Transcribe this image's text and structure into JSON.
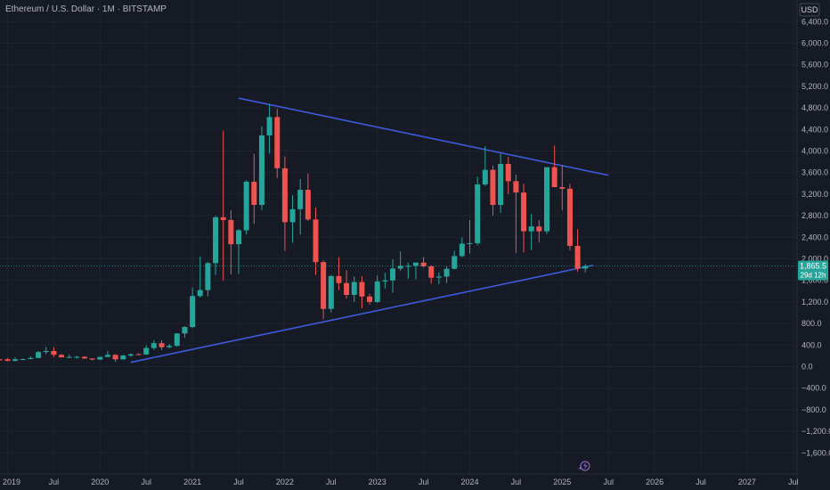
{
  "header": {
    "symbol_line": "Ethereum / U.S. Dollar · 1M · BITSTAMP"
  },
  "price_scale": {
    "unit": "USD"
  },
  "last_price": {
    "value": "1,865.5",
    "countdown": "29d 12h",
    "numeric": 1865.5
  },
  "colors": {
    "background": "#161a25",
    "up": "#26a69a",
    "down": "#ef5350",
    "trendline": "#3d5bdc",
    "text": "#b2b5be",
    "grid": "#1f2330",
    "price_tag": "#26a69a"
  },
  "chart_data": {
    "type": "candlestick",
    "x_ticks": [
      {
        "label": "2019",
        "t": 0
      },
      {
        "label": "Jul",
        "t": 6
      },
      {
        "label": "2020",
        "t": 12
      },
      {
        "label": "Jul",
        "t": 18
      },
      {
        "label": "2021",
        "t": 24
      },
      {
        "label": "Jul",
        "t": 30
      },
      {
        "label": "2022",
        "t": 36
      },
      {
        "label": "Jul",
        "t": 42
      },
      {
        "label": "2023",
        "t": 48
      },
      {
        "label": "Jul",
        "t": 54
      },
      {
        "label": "2024",
        "t": 60
      },
      {
        "label": "Jul",
        "t": 66
      },
      {
        "label": "2025",
        "t": 72
      },
      {
        "label": "Jul",
        "t": 78
      },
      {
        "label": "2026",
        "t": 84
      },
      {
        "label": "Jul",
        "t": 90
      },
      {
        "label": "2027",
        "t": 96
      },
      {
        "label": "Jul",
        "t": 102
      }
    ],
    "y_ticks": [
      "6,400.0",
      "6,000.0",
      "5,600.0",
      "5,200.0",
      "4,800.0",
      "4,400.0",
      "4,000.0",
      "3,600.0",
      "3,200.0",
      "2,800.0",
      "2,400.0",
      "2,000.0",
      "1,600.0",
      "1,200.0",
      "800.0",
      "400.0",
      "0.0",
      "−400.0",
      "−800.0",
      "−1,200.0",
      "−1,600.0"
    ],
    "y_tick_values": [
      6400,
      6000,
      5600,
      5200,
      4800,
      4400,
      4000,
      3600,
      3200,
      2800,
      2400,
      2000,
      1600,
      1200,
      800,
      400,
      0,
      -400,
      -800,
      -1200,
      -1600
    ],
    "ylim": [
      -2000,
      6700
    ],
    "x_range": [
      -2,
      104
    ],
    "candles": [
      {
        "t": -2,
        "o": 115,
        "h": 145,
        "l": 100,
        "c": 135
      },
      {
        "t": -1,
        "o": 135,
        "h": 150,
        "l": 110,
        "c": 125
      },
      {
        "t": 0,
        "o": 135,
        "h": 160,
        "l": 100,
        "c": 105
      },
      {
        "t": 1,
        "o": 105,
        "h": 170,
        "l": 100,
        "c": 136
      },
      {
        "t": 2,
        "o": 136,
        "h": 150,
        "l": 120,
        "c": 140
      },
      {
        "t": 3,
        "o": 140,
        "h": 185,
        "l": 140,
        "c": 160
      },
      {
        "t": 4,
        "o": 160,
        "h": 290,
        "l": 155,
        "c": 270
      },
      {
        "t": 5,
        "o": 270,
        "h": 365,
        "l": 230,
        "c": 290
      },
      {
        "t": 6,
        "o": 290,
        "h": 360,
        "l": 180,
        "c": 218
      },
      {
        "t": 7,
        "o": 218,
        "h": 235,
        "l": 170,
        "c": 172
      },
      {
        "t": 8,
        "o": 172,
        "h": 225,
        "l": 160,
        "c": 180
      },
      {
        "t": 9,
        "o": 180,
        "h": 200,
        "l": 150,
        "c": 182
      },
      {
        "t": 10,
        "o": 182,
        "h": 195,
        "l": 145,
        "c": 151
      },
      {
        "t": 11,
        "o": 151,
        "h": 155,
        "l": 115,
        "c": 130
      },
      {
        "t": 12,
        "o": 130,
        "h": 185,
        "l": 125,
        "c": 180
      },
      {
        "t": 13,
        "o": 180,
        "h": 290,
        "l": 175,
        "c": 218
      },
      {
        "t": 14,
        "o": 218,
        "h": 230,
        "l": 90,
        "c": 135
      },
      {
        "t": 15,
        "o": 135,
        "h": 220,
        "l": 130,
        "c": 205
      },
      {
        "t": 16,
        "o": 205,
        "h": 240,
        "l": 180,
        "c": 230
      },
      {
        "t": 17,
        "o": 230,
        "h": 250,
        "l": 220,
        "c": 225
      },
      {
        "t": 18,
        "o": 225,
        "h": 395,
        "l": 220,
        "c": 345
      },
      {
        "t": 19,
        "o": 345,
        "h": 490,
        "l": 310,
        "c": 435
      },
      {
        "t": 20,
        "o": 435,
        "h": 490,
        "l": 310,
        "c": 360
      },
      {
        "t": 21,
        "o": 360,
        "h": 420,
        "l": 340,
        "c": 385
      },
      {
        "t": 22,
        "o": 385,
        "h": 620,
        "l": 370,
        "c": 615
      },
      {
        "t": 23,
        "o": 615,
        "h": 750,
        "l": 535,
        "c": 735
      },
      {
        "t": 24,
        "o": 735,
        "h": 1470,
        "l": 715,
        "c": 1310
      },
      {
        "t": 25,
        "o": 1310,
        "h": 2040,
        "l": 1280,
        "c": 1420
      },
      {
        "t": 26,
        "o": 1420,
        "h": 1940,
        "l": 1300,
        "c": 1920
      },
      {
        "t": 27,
        "o": 1920,
        "h": 2800,
        "l": 1700,
        "c": 2770
      },
      {
        "t": 28,
        "o": 2770,
        "h": 4380,
        "l": 1600,
        "c": 2720
      },
      {
        "t": 29,
        "o": 2720,
        "h": 2900,
        "l": 1710,
        "c": 2270
      },
      {
        "t": 30,
        "o": 2270,
        "h": 2550,
        "l": 1720,
        "c": 2530
      },
      {
        "t": 31,
        "o": 2530,
        "h": 3460,
        "l": 2450,
        "c": 3430
      },
      {
        "t": 32,
        "o": 3430,
        "h": 3950,
        "l": 2650,
        "c": 3000
      },
      {
        "t": 33,
        "o": 3000,
        "h": 4460,
        "l": 2900,
        "c": 4290
      },
      {
        "t": 34,
        "o": 4290,
        "h": 4870,
        "l": 3950,
        "c": 4630
      },
      {
        "t": 35,
        "o": 4630,
        "h": 4780,
        "l": 3500,
        "c": 3680
      },
      {
        "t": 36,
        "o": 3680,
        "h": 3900,
        "l": 2150,
        "c": 2680
      },
      {
        "t": 37,
        "o": 2680,
        "h": 3180,
        "l": 2300,
        "c": 2920
      },
      {
        "t": 38,
        "o": 2920,
        "h": 3480,
        "l": 2450,
        "c": 3280
      },
      {
        "t": 39,
        "o": 3280,
        "h": 3580,
        "l": 2700,
        "c": 2730
      },
      {
        "t": 40,
        "o": 2730,
        "h": 2950,
        "l": 1700,
        "c": 1940
      },
      {
        "t": 41,
        "o": 1940,
        "h": 1970,
        "l": 880,
        "c": 1070
      },
      {
        "t": 42,
        "o": 1070,
        "h": 1700,
        "l": 1000,
        "c": 1680
      },
      {
        "t": 43,
        "o": 1680,
        "h": 2030,
        "l": 1420,
        "c": 1550
      },
      {
        "t": 44,
        "o": 1550,
        "h": 1790,
        "l": 1260,
        "c": 1330
      },
      {
        "t": 45,
        "o": 1330,
        "h": 1670,
        "l": 1200,
        "c": 1570
      },
      {
        "t": 46,
        "o": 1570,
        "h": 1680,
        "l": 1080,
        "c": 1300
      },
      {
        "t": 47,
        "o": 1300,
        "h": 1350,
        "l": 1150,
        "c": 1200
      },
      {
        "t": 48,
        "o": 1200,
        "h": 1690,
        "l": 1180,
        "c": 1580
      },
      {
        "t": 49,
        "o": 1580,
        "h": 1740,
        "l": 1450,
        "c": 1600
      },
      {
        "t": 50,
        "o": 1600,
        "h": 1990,
        "l": 1370,
        "c": 1820
      },
      {
        "t": 51,
        "o": 1820,
        "h": 2140,
        "l": 1780,
        "c": 1870
      },
      {
        "t": 52,
        "o": 1870,
        "h": 1930,
        "l": 1630,
        "c": 1870
      },
      {
        "t": 53,
        "o": 1870,
        "h": 1930,
        "l": 1620,
        "c": 1930
      },
      {
        "t": 54,
        "o": 1930,
        "h": 2030,
        "l": 1840,
        "c": 1860
      },
      {
        "t": 55,
        "o": 1860,
        "h": 1880,
        "l": 1540,
        "c": 1650
      },
      {
        "t": 56,
        "o": 1650,
        "h": 1750,
        "l": 1530,
        "c": 1670
      },
      {
        "t": 57,
        "o": 1670,
        "h": 1860,
        "l": 1550,
        "c": 1815
      },
      {
        "t": 58,
        "o": 1815,
        "h": 2150,
        "l": 1800,
        "c": 2050
      },
      {
        "t": 59,
        "o": 2050,
        "h": 2400,
        "l": 2030,
        "c": 2280
      },
      {
        "t": 60,
        "o": 2280,
        "h": 2720,
        "l": 2100,
        "c": 2290
      },
      {
        "t": 61,
        "o": 2290,
        "h": 3520,
        "l": 2250,
        "c": 3380
      },
      {
        "t": 62,
        "o": 3380,
        "h": 4090,
        "l": 3350,
        "c": 3650
      },
      {
        "t": 63,
        "o": 3650,
        "h": 3730,
        "l": 2800,
        "c": 3000
      },
      {
        "t": 64,
        "o": 3000,
        "h": 3950,
        "l": 2850,
        "c": 3760
      },
      {
        "t": 65,
        "o": 3760,
        "h": 3890,
        "l": 3200,
        "c": 3440
      },
      {
        "t": 66,
        "o": 3440,
        "h": 3560,
        "l": 2110,
        "c": 3230
      },
      {
        "t": 67,
        "o": 3230,
        "h": 3390,
        "l": 2120,
        "c": 2510
      },
      {
        "t": 68,
        "o": 2510,
        "h": 2830,
        "l": 2160,
        "c": 2600
      },
      {
        "t": 69,
        "o": 2600,
        "h": 2720,
        "l": 2300,
        "c": 2510
      },
      {
        "t": 70,
        "o": 2510,
        "h": 3700,
        "l": 2460,
        "c": 3700
      },
      {
        "t": 71,
        "o": 3700,
        "h": 4100,
        "l": 3400,
        "c": 3330
      },
      {
        "t": 72,
        "o": 3330,
        "h": 3740,
        "l": 2900,
        "c": 3300
      },
      {
        "t": 73,
        "o": 3300,
        "h": 3390,
        "l": 2160,
        "c": 2240
      },
      {
        "t": 74,
        "o": 2240,
        "h": 2550,
        "l": 1760,
        "c": 1820
      },
      {
        "t": 75,
        "o": 1820,
        "h": 1900,
        "l": 1750,
        "c": 1865.5
      }
    ],
    "trendlines": [
      {
        "name": "resistance",
        "points": [
          {
            "t": 30,
            "v": 4980
          },
          {
            "t": 78,
            "v": 3550
          }
        ]
      },
      {
        "name": "support",
        "points": [
          {
            "t": 16,
            "v": 80
          },
          {
            "t": 76,
            "v": 1880
          }
        ]
      }
    ]
  }
}
